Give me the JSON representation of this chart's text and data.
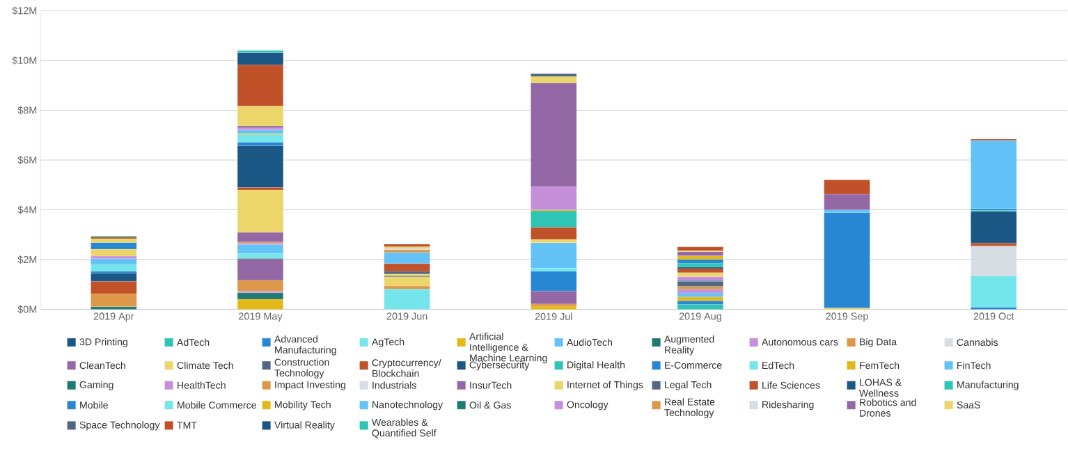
{
  "chart_data": {
    "type": "bar",
    "stacked": true,
    "grid": "y",
    "legend": "bottom",
    "categories": [
      "2019 Apr",
      "2019 May",
      "2019 Jun",
      "2019 Jul",
      "2019 Aug",
      "2019 Sep",
      "2019 Oct"
    ],
    "ylim": [
      0,
      12
    ],
    "yticks": [
      {
        "value": 0,
        "label": "$0M"
      },
      {
        "value": 2,
        "label": "$2M"
      },
      {
        "value": 4,
        "label": "$4M"
      },
      {
        "value": 6,
        "label": "$6M"
      },
      {
        "value": 8,
        "label": "$8M"
      },
      {
        "value": 10,
        "label": "$10M"
      },
      {
        "value": 12,
        "label": "$12M"
      }
    ],
    "series": [
      {
        "name": "3D Printing",
        "color": "#1a5785",
        "values": [
          null,
          null,
          null,
          null,
          null,
          null,
          null
        ]
      },
      {
        "name": "AdTech",
        "color": "#2ec4b6",
        "values": [
          null,
          null,
          null,
          null,
          0.2,
          null,
          null
        ]
      },
      {
        "name": "Advanced Manufacturing",
        "color": "#2887d2",
        "values": [
          null,
          null,
          null,
          null,
          0.15,
          null,
          0.09
        ]
      },
      {
        "name": "AgTech",
        "color": "#74e6eb",
        "values": [
          null,
          null,
          0.82,
          null,
          null,
          null,
          1.26
        ]
      },
      {
        "name": "Artificial Intelligence & Machine Learning",
        "color": "#e3b819",
        "values": [
          null,
          0.41,
          null,
          0.13,
          0.15,
          null,
          null
        ]
      },
      {
        "name": "AudioTech",
        "color": "#63c3f8",
        "values": [
          null,
          null,
          null,
          null,
          0.16,
          null,
          null
        ]
      },
      {
        "name": "Augmented Reality",
        "color": "#1e7b73",
        "values": [
          0.11,
          0.26,
          null,
          null,
          null,
          null,
          null
        ]
      },
      {
        "name": "Autonomous cars",
        "color": "#c68fda",
        "values": [
          null,
          0.07,
          null,
          null,
          0.15,
          null,
          null
        ]
      },
      {
        "name": "Big Data",
        "color": "#de984a",
        "values": [
          0.52,
          0.43,
          0.12,
          0.09,
          0.12,
          null,
          null
        ]
      },
      {
        "name": "Cannabis",
        "color": "#d8dde4",
        "values": [
          null,
          null,
          null,
          null,
          null,
          null,
          1.2
        ]
      },
      {
        "name": "CleanTech",
        "color": "#9368a4",
        "values": [
          null,
          0.87,
          null,
          0.52,
          null,
          null,
          null
        ]
      },
      {
        "name": "Climate Tech",
        "color": "#ecd56a",
        "values": [
          null,
          null,
          0.37,
          null,
          null,
          null,
          null
        ]
      },
      {
        "name": "Construction Technology",
        "color": "#516882",
        "values": [
          null,
          null,
          0.04,
          null,
          0.19,
          null,
          null
        ]
      },
      {
        "name": "Cryptocurrency/Blockchain",
        "color": "#c05128",
        "values": [
          0.5,
          null,
          null,
          null,
          null,
          null,
          0.12
        ]
      },
      {
        "name": "Cybersecurity",
        "color": "#1a5785",
        "values": [
          0.33,
          null,
          null,
          null,
          0.04,
          null,
          1.26
        ]
      },
      {
        "name": "Digital Health",
        "color": "#2ec4b6",
        "values": [
          null,
          0.04,
          null,
          null,
          null,
          null,
          0.05
        ]
      },
      {
        "name": "E-Commerce",
        "color": "#2887d2",
        "values": [
          0.07,
          null,
          null,
          0.79,
          null,
          null,
          0.07
        ]
      },
      {
        "name": "EdTech",
        "color": "#74e6eb",
        "values": [
          0.28,
          0.16,
          null,
          0.13,
          null,
          null,
          null
        ]
      },
      {
        "name": "FemTech",
        "color": "#e3b819",
        "values": [
          null,
          null,
          null,
          null,
          null,
          null,
          null
        ]
      },
      {
        "name": "FinTech",
        "color": "#63c3f8",
        "values": [
          0.23,
          0.37,
          null,
          1.02,
          null,
          null,
          2.74
        ]
      },
      {
        "name": "Gaming",
        "color": "#1e7b73",
        "values": [
          null,
          null,
          null,
          null,
          null,
          null,
          null
        ]
      },
      {
        "name": "HealthTech",
        "color": "#c68fda",
        "values": [
          0.1,
          0.06,
          null,
          null,
          0.16,
          null,
          null
        ]
      },
      {
        "name": "Impact Investing",
        "color": "#de984a",
        "values": [
          null,
          0.04,
          null,
          null,
          null,
          null,
          null
        ]
      },
      {
        "name": "Industrials",
        "color": "#d8dde4",
        "values": [
          null,
          null,
          null,
          null,
          null,
          null,
          null
        ]
      },
      {
        "name": "InsurTech",
        "color": "#9368a4",
        "values": [
          null,
          0.38,
          null,
          null,
          null,
          null,
          null
        ]
      },
      {
        "name": "Internet of Things",
        "color": "#ecd56a",
        "values": [
          0.28,
          1.71,
          0.07,
          0.13,
          0.16,
          0.06,
          null
        ]
      },
      {
        "name": "Legal Tech",
        "color": "#516882",
        "values": [
          null,
          null,
          0.11,
          null,
          null,
          null,
          null
        ]
      },
      {
        "name": "Life Sciences",
        "color": "#c05128",
        "values": [
          null,
          0.1,
          0.31,
          0.49,
          0.16,
          null,
          null
        ]
      },
      {
        "name": "LOHAS & Wellness",
        "color": "#1a5785",
        "values": [
          null,
          1.67,
          null,
          null,
          0.06,
          null,
          null
        ]
      },
      {
        "name": "Manufacturing",
        "color": "#2ec4b6",
        "values": [
          null,
          null,
          null,
          0.66,
          0.16,
          null,
          null
        ]
      },
      {
        "name": "Mobile",
        "color": "#2887d2",
        "values": [
          0.27,
          0.15,
          null,
          null,
          0.15,
          3.83,
          null
        ]
      },
      {
        "name": "Mobile Commerce",
        "color": "#74e6eb",
        "values": [
          null,
          0.31,
          null,
          null,
          null,
          null,
          null
        ]
      },
      {
        "name": "Mobility Tech",
        "color": "#e3b819",
        "values": [
          null,
          0.04,
          null,
          0.04,
          0.15,
          null,
          null
        ]
      },
      {
        "name": "Nanotechnology",
        "color": "#63c3f8",
        "values": [
          null,
          0.14,
          0.45,
          null,
          null,
          0.11,
          null
        ]
      },
      {
        "name": "Oil & Gas",
        "color": "#1e7b73",
        "values": [
          null,
          null,
          null,
          null,
          null,
          null,
          null
        ]
      },
      {
        "name": "Oncology",
        "color": "#c68fda",
        "values": [
          null,
          0.08,
          null,
          0.94,
          null,
          null,
          null
        ]
      },
      {
        "name": "Real Estate Technology",
        "color": "#de984a",
        "values": [
          null,
          null,
          0.11,
          null,
          null,
          null,
          null
        ]
      },
      {
        "name": "Ridesharing",
        "color": "#d8dde4",
        "values": [
          null,
          null,
          0.05,
          null,
          null,
          null,
          null
        ]
      },
      {
        "name": "Robotics and Drones",
        "color": "#9368a4",
        "values": [
          null,
          0.08,
          null,
          4.16,
          0.16,
          0.63,
          null
        ]
      },
      {
        "name": "SaaS",
        "color": "#ecd56a",
        "values": [
          0.15,
          0.8,
          0.07,
          0.26,
          0.04,
          null,
          null
        ]
      },
      {
        "name": "Space Technology",
        "color": "#516882",
        "values": [
          null,
          null,
          null,
          0.11,
          null,
          null,
          null
        ]
      },
      {
        "name": "TMT",
        "color": "#c05128",
        "values": [
          0.07,
          1.66,
          0.1,
          null,
          0.15,
          0.57,
          0.05
        ]
      },
      {
        "name": "Virtual Reality",
        "color": "#1a5785",
        "values": [
          null,
          0.49,
          null,
          null,
          null,
          null,
          null
        ]
      },
      {
        "name": "Wearables & Quantified Self",
        "color": "#2ec4b6",
        "values": [
          0.04,
          0.08,
          null,
          null,
          null,
          null,
          null
        ]
      }
    ]
  }
}
